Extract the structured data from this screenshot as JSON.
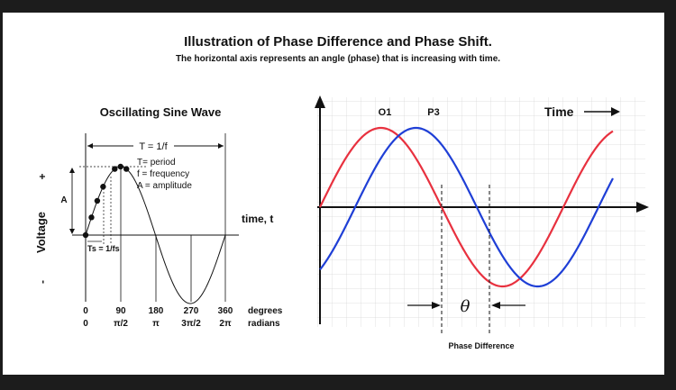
{
  "header": {
    "title": "Illustration of Phase Difference and Phase Shift.",
    "subtitle": "The horizontal axis represents an angle (phase) that is increasing with time."
  },
  "left_diagram": {
    "title": "Oscillating Sine Wave",
    "y_axis_label": "Voltage",
    "plus_sign": "+",
    "minus_sign": "-",
    "period_label": "T = 1/f",
    "legend_lines": [
      "T= period",
      "f = frequency",
      "A = amplitude"
    ],
    "amplitude_label": "A",
    "sample_label": "Ts = 1/fs",
    "time_axis_label": "time, t",
    "degree_ticks": [
      "0",
      "90",
      "180",
      "270",
      "360"
    ],
    "radian_ticks": [
      "0",
      "π/2",
      "π",
      "3π/2",
      "2π"
    ],
    "degrees_unit": "degrees",
    "radians_unit": "radians"
  },
  "right_diagram": {
    "label_red": "O1",
    "label_blue": "P3",
    "time_label": "Time",
    "theta": "θ",
    "caption": "Phase Difference",
    "colors": {
      "red": "#e8313f",
      "blue": "#1f3fd6",
      "grid": "#d6d6d6"
    },
    "phase_offset_degrees": 52
  }
}
